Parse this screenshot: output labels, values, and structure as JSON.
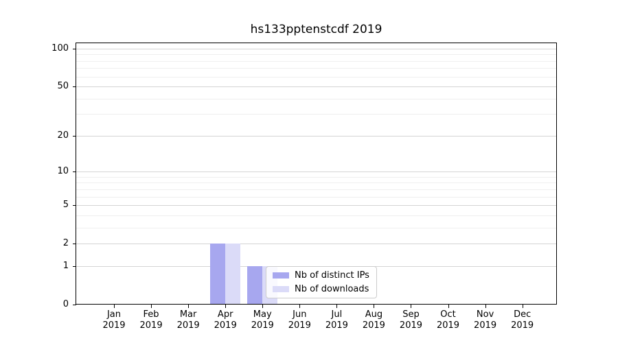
{
  "title": "hs133pptenstcdf 2019",
  "chart_data": {
    "type": "bar",
    "title": "hs133pptenstcdf 2019",
    "categories": [
      "Jan 2019",
      "Feb 2019",
      "Mar 2019",
      "Apr 2019",
      "May 2019",
      "Jun 2019",
      "Jul 2019",
      "Aug 2019",
      "Sep 2019",
      "Oct 2019",
      "Nov 2019",
      "Dec 2019"
    ],
    "series": [
      {
        "name": "Nb of distinct IPs",
        "color": "#a7a7ef",
        "values": [
          0,
          0,
          0,
          2,
          1,
          0,
          0,
          0,
          0,
          0,
          0,
          0
        ]
      },
      {
        "name": "Nb of downloads",
        "color": "#dbdbf8",
        "values": [
          0,
          0,
          0,
          2,
          1,
          0,
          0,
          0,
          0,
          0,
          0,
          0
        ]
      }
    ],
    "yticks": [
      0,
      1,
      2,
      5,
      10,
      20,
      50,
      100
    ],
    "y_minor_ticks": [
      3,
      4,
      6,
      7,
      8,
      9,
      30,
      40,
      60,
      70,
      80,
      90
    ],
    "ylim": [
      0,
      100
    ],
    "xlabel": "",
    "ylabel": "",
    "scale": "log1p",
    "grid": "horizontal major and minor",
    "legend_position": "inside lower center"
  }
}
